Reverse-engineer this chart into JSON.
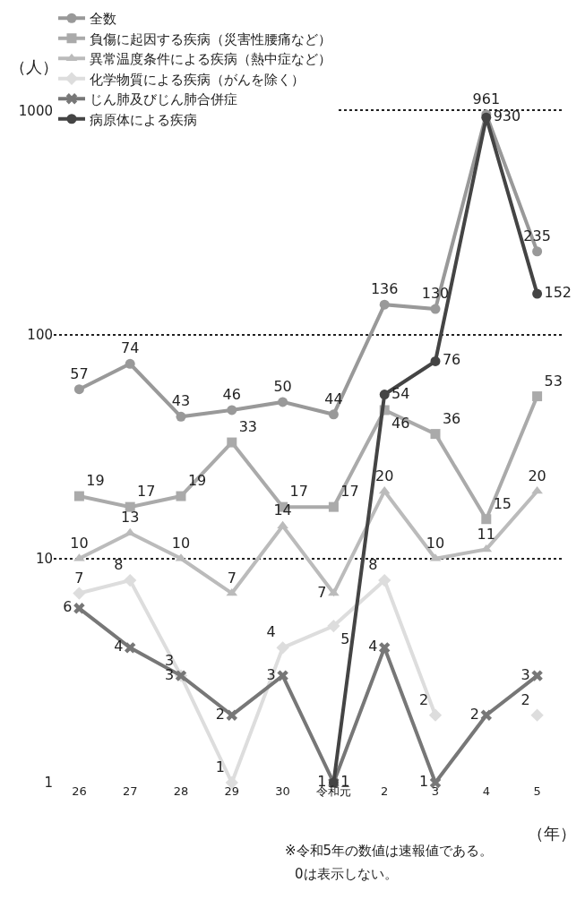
{
  "chart_data": {
    "type": "line",
    "categories": [
      "26",
      "27",
      "28",
      "29",
      "30",
      "令和元",
      "2",
      "3",
      "4",
      "5"
    ],
    "series": [
      {
        "name": "全数",
        "color": "#999999",
        "marker": "circle",
        "values": [
          57,
          74,
          43,
          46,
          50,
          44,
          136,
          130,
          961,
          235
        ]
      },
      {
        "name": "負傷に起因する疾病（災害性腰痛など）",
        "color": "#aaaaaa",
        "marker": "square",
        "values": [
          19,
          17,
          19,
          33,
          17,
          17,
          46,
          36,
          15,
          53
        ]
      },
      {
        "name": "異常温度条件による疾病（熱中症など）",
        "color": "#bbbbbb",
        "marker": "triangle",
        "values": [
          10,
          13,
          10,
          7,
          14,
          7,
          20,
          10,
          11,
          20
        ]
      },
      {
        "name": "化学物質による疾病（がんを除く）",
        "color": "#dddddd",
        "marker": "diamond",
        "values": [
          7,
          8,
          3,
          1,
          4,
          5,
          8,
          2,
          null,
          2
        ]
      },
      {
        "name": "じん肺及びじん肺合併症",
        "color": "#777777",
        "marker": "cross",
        "values": [
          6,
          4,
          3,
          2,
          3,
          1,
          4,
          1,
          2,
          3
        ]
      },
      {
        "name": "病原体による疾病",
        "color": "#444444",
        "marker": "circle",
        "values": [
          null,
          null,
          null,
          null,
          null,
          1,
          54,
          76,
          930,
          152
        ]
      }
    ],
    "log": true,
    "ylim": [
      1,
      3000
    ],
    "yticks": [
      1,
      10,
      100,
      1000
    ],
    "grid": "y",
    "legend": "top left",
    "line_style": "solid",
    "data_labels": true,
    "ylabel": "（人）",
    "xlabel": "（年）",
    "annotations": [
      "※令和5年の数値は速報値である。",
      "0は表示しない。"
    ]
  }
}
